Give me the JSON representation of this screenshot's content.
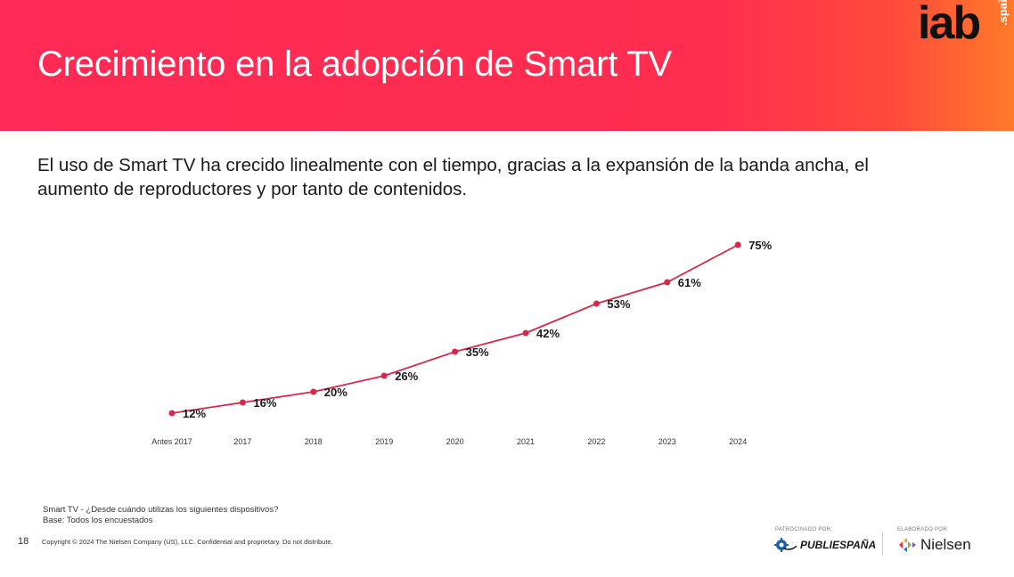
{
  "header": {
    "title": "Crecimiento en la adopción de Smart TV",
    "logo_main": "iab",
    "logo_sub": ".spain"
  },
  "subtitle": "El uso de Smart TV ha crecido linealmente con el tiempo, gracias a la expansión de la banda ancha, el aumento de reproductores y por tanto de contenidos.",
  "colors": {
    "accent": "#ff2d50",
    "line": "#d9274a",
    "text": "#1a1a1a"
  },
  "chart_data": {
    "type": "line",
    "title": "",
    "xlabel": "",
    "ylabel": "",
    "categories": [
      "Antes 2017",
      "2017",
      "2018",
      "2019",
      "2020",
      "2021",
      "2022",
      "2023",
      "2024"
    ],
    "series": [
      {
        "values": [
          12,
          16,
          20,
          26,
          35,
          42,
          53,
          61,
          75
        ],
        "labels": [
          "12%",
          "16%",
          "20%",
          "26%",
          "35%",
          "42%",
          "53%",
          "61%",
          "75%"
        ]
      }
    ],
    "grid": false,
    "legend": "none"
  },
  "notes": {
    "question": "Smart TV - ¿Desde cuándo utilizas los siguientes dispositivos?",
    "base": "Base: Todos los encuestados"
  },
  "footer": {
    "page_number": "18",
    "copyright": "Copyright © 2024 The Nielsen Company (US), LLC. Confidential and proprietary. Do not distribute.",
    "sponsor_caption": "PATROCINADO POR:",
    "sponsor_name": "PUBLIESPAÑA",
    "made_caption": "ELABORADO POR:",
    "made_name": "Nielsen",
    "sponsor_icon": "gear-icon",
    "made_icon": "nielsen-diamond-icon"
  }
}
